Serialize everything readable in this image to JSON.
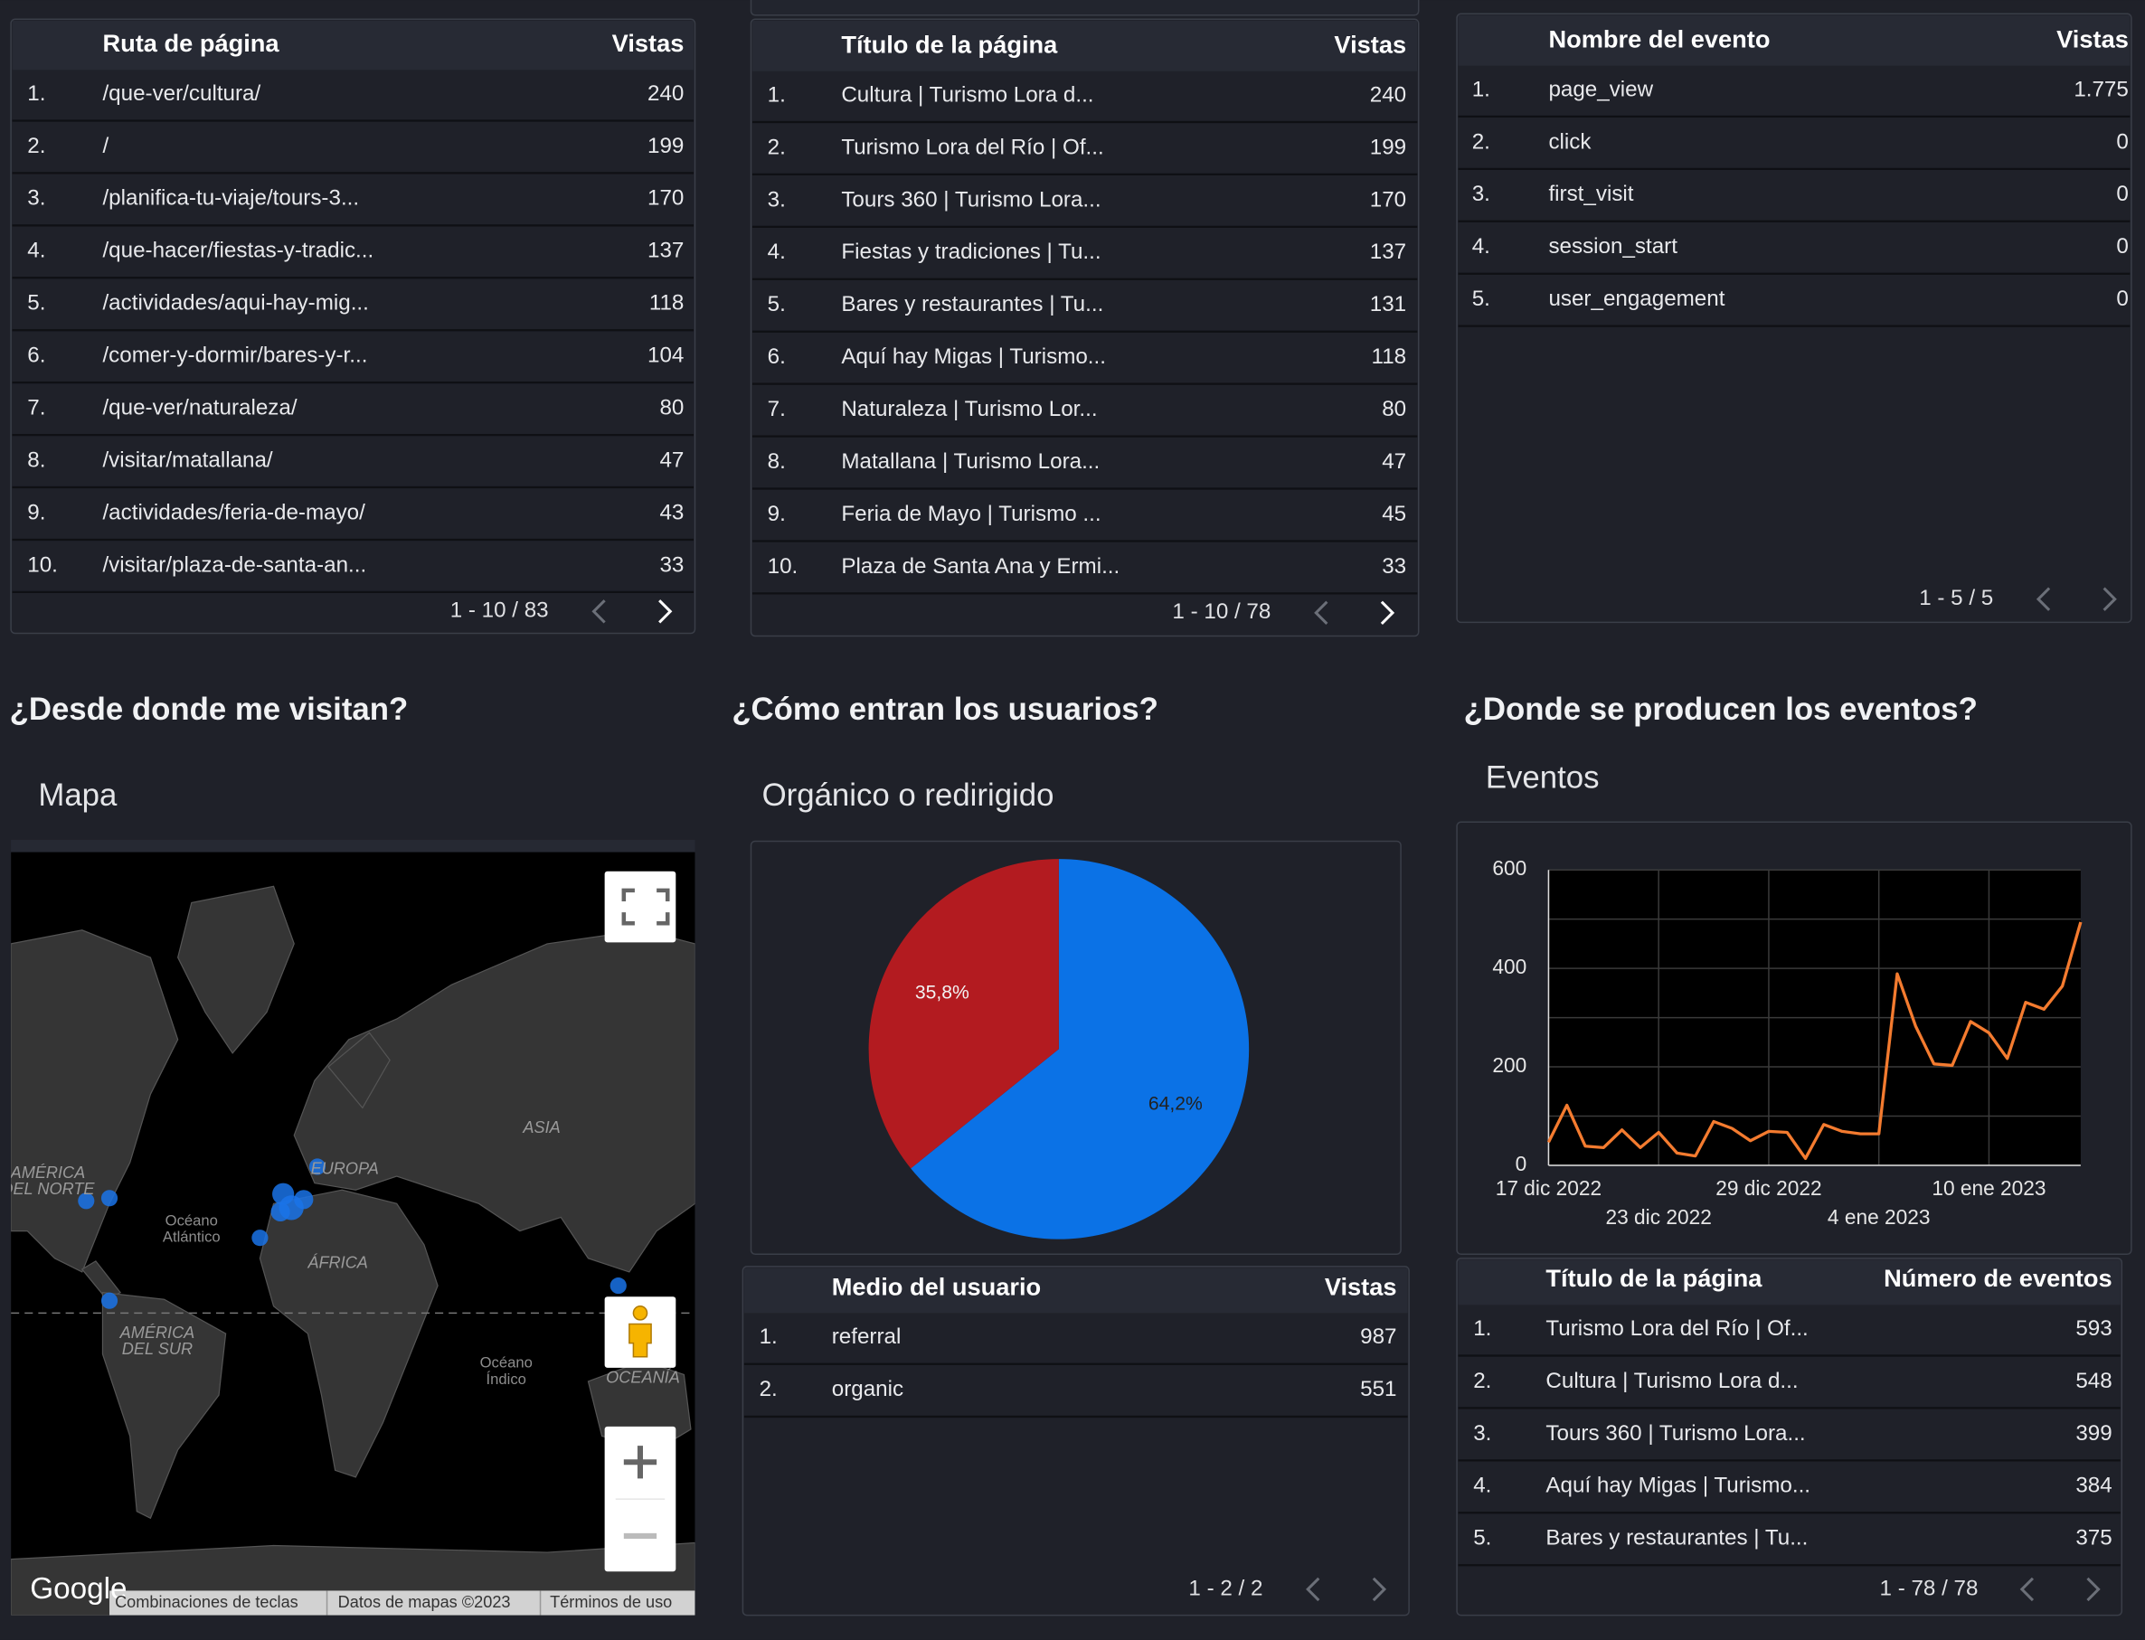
{
  "sections": [
    "¿Desde donde me visitan?",
    "¿Cómo entran los usuarios?",
    "¿Donde se producen los eventos?"
  ],
  "tables": [
    {
      "headers": [
        "Ruta de página",
        "Vistas"
      ],
      "rows": [
        [
          "1.",
          "/que-ver/cultura/",
          "240"
        ],
        [
          "2.",
          "/",
          "199"
        ],
        [
          "3.",
          "/planifica-tu-viaje/tours-3...",
          "170"
        ],
        [
          "4.",
          "/que-hacer/fiestas-y-tradic...",
          "137"
        ],
        [
          "5.",
          "/actividades/aqui-hay-mig...",
          "118"
        ],
        [
          "6.",
          "/comer-y-dormir/bares-y-r...",
          "104"
        ],
        [
          "7.",
          "/que-ver/naturaleza/",
          "80"
        ],
        [
          "8.",
          "/visitar/matallana/",
          "47"
        ],
        [
          "9.",
          "/actividades/feria-de-mayo/",
          "43"
        ],
        [
          "10.",
          "/visitar/plaza-de-santa-an...",
          "33"
        ]
      ],
      "pagination": "1 - 10 / 83"
    },
    {
      "headers": [
        "Título de la página",
        "Vistas"
      ],
      "rows": [
        [
          "1.",
          "Cultura | Turismo Lora d...",
          "240"
        ],
        [
          "2.",
          "Turismo Lora del Río | Of...",
          "199"
        ],
        [
          "3.",
          "Tours 360 | Turismo Lora...",
          "170"
        ],
        [
          "4.",
          "Fiestas y tradiciones | Tu...",
          "137"
        ],
        [
          "5.",
          "Bares y restaurantes | Tu...",
          "131"
        ],
        [
          "6.",
          "Aquí hay Migas | Turismo...",
          "118"
        ],
        [
          "7.",
          "Naturaleza | Turismo Lor...",
          "80"
        ],
        [
          "8.",
          "Matallana | Turismo Lora...",
          "47"
        ],
        [
          "9.",
          "Feria de Mayo | Turismo ...",
          "45"
        ],
        [
          "10.",
          "Plaza de Santa Ana y Ermi...",
          "33"
        ]
      ],
      "pagination": "1 - 10 / 78"
    },
    {
      "headers": [
        "Nombre del evento",
        "Vistas"
      ],
      "rows": [
        [
          "1.",
          "page_view",
          "1.775"
        ],
        [
          "2.",
          "click",
          "0"
        ],
        [
          "3.",
          "first_visit",
          "0"
        ],
        [
          "4.",
          "session_start",
          "0"
        ],
        [
          "5.",
          "user_engagement",
          "0"
        ]
      ],
      "pagination": "1 - 5 / 5"
    },
    {
      "headers": [
        "Medio del usuario",
        "Vistas"
      ],
      "rows": [
        [
          "1.",
          "referral",
          "987"
        ],
        [
          "2.",
          "organic",
          "551"
        ]
      ],
      "pagination": "1 - 2 / 2"
    },
    {
      "headers": [
        "Título de la página",
        "Número de eventos"
      ],
      "rows": [
        [
          "1.",
          "Turismo Lora del Río | Of...",
          "593"
        ],
        [
          "2.",
          "Cultura | Turismo Lora d...",
          "548"
        ],
        [
          "3.",
          "Tours 360 | Turismo Lora...",
          "399"
        ],
        [
          "4.",
          "Aquí hay Migas | Turismo...",
          "384"
        ],
        [
          "5.",
          "Bares y restaurantes | Tu...",
          "375"
        ]
      ],
      "pagination": "1 - 78 / 78"
    }
  ],
  "map": {
    "title": "Mapa",
    "labels": [
      [
        "AMÉRICA",
        "DEL NORTE"
      ],
      [
        "Océano",
        "Atlántico"
      ],
      [
        "EUROPA"
      ],
      [
        "ASIA"
      ],
      [
        "ÁFRICA"
      ],
      [
        "AMÉRICA",
        "DEL SUR"
      ],
      [
        "Océano",
        "Índico"
      ],
      [
        "OCEANÍA"
      ]
    ],
    "logo": "Google",
    "footer": [
      "Combinaciones de teclas",
      "Datos de mapas ©2023",
      "Términos de uso"
    ]
  },
  "chart_data": [
    {
      "type": "pie",
      "title": "Orgánico o redirigido",
      "values": [
        64.2,
        35.8
      ],
      "value_labels": [
        "64,2%",
        "35,8%"
      ],
      "colors": [
        "#0b72e6",
        "#b31b20"
      ]
    },
    {
      "type": "line",
      "title": "Eventos",
      "x": [
        "2022-12-17",
        "2022-12-18",
        "2022-12-19",
        "2022-12-20",
        "2022-12-21",
        "2022-12-22",
        "2022-12-23",
        "2022-12-24",
        "2022-12-25",
        "2022-12-26",
        "2022-12-27",
        "2022-12-28",
        "2022-12-29",
        "2022-12-30",
        "2022-12-31",
        "2023-01-01",
        "2023-01-02",
        "2023-01-03",
        "2023-01-04",
        "2023-01-05",
        "2023-01-06",
        "2023-01-07",
        "2023-01-08",
        "2023-01-09",
        "2023-01-10",
        "2023-01-11",
        "2023-01-12",
        "2023-01-13",
        "2023-01-14",
        "2023-01-15"
      ],
      "series": [
        {
          "color": "#f47b2f",
          "values": [
            47,
            122,
            39,
            36,
            72,
            36,
            67,
            25,
            19,
            89,
            75,
            50,
            69,
            67,
            14,
            83,
            69,
            64,
            64,
            389,
            283,
            206,
            203,
            292,
            269,
            217,
            331,
            317,
            364,
            494
          ]
        }
      ],
      "xlim": [
        "2022-12-17",
        "2023-01-15"
      ],
      "xticks": [
        {
          "value": "2022-12-17",
          "label": "17 dic 2022"
        },
        {
          "value": "2022-12-23",
          "label": "23 dic 2022"
        },
        {
          "value": "2022-12-29",
          "label": "29 dic 2022"
        },
        {
          "value": "2023-01-04",
          "label": "4 ene 2023"
        },
        {
          "value": "2023-01-10",
          "label": "10 ene 2023"
        }
      ],
      "ylim": [
        0,
        600
      ],
      "yticks": [
        0,
        200,
        400,
        600
      ],
      "yminor_grid": [
        100,
        300,
        500
      ],
      "grid": true
    }
  ]
}
